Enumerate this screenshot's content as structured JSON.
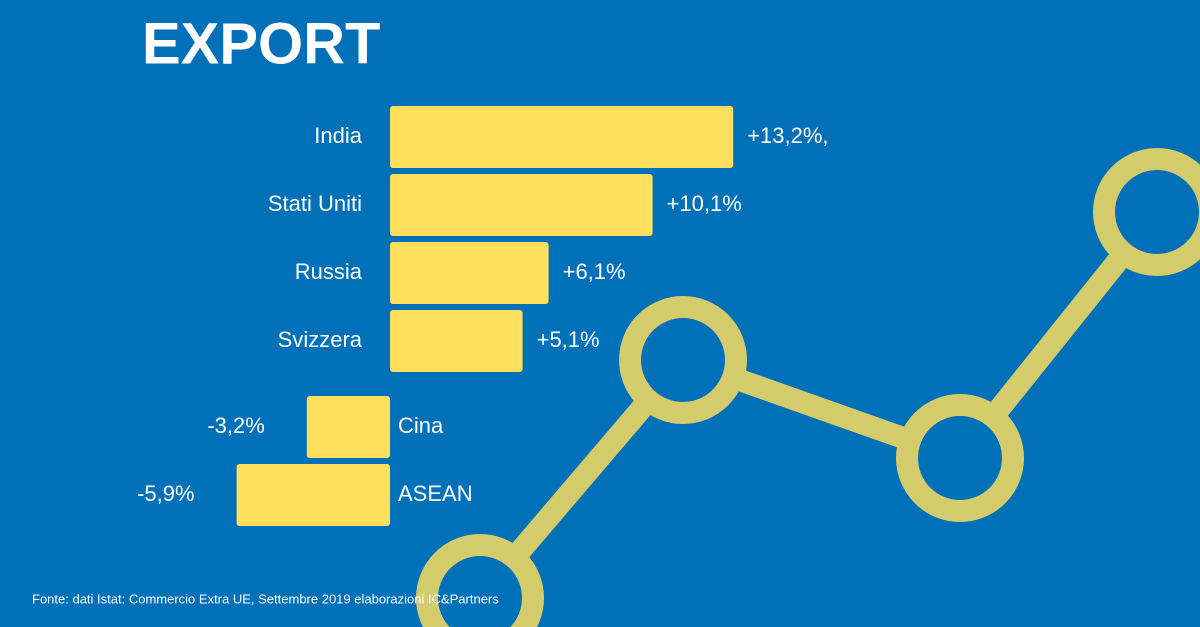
{
  "chart_data": {
    "type": "bar",
    "orientation": "horizontal",
    "title": "EXPORT",
    "categories": [
      "India",
      "Stati Uniti",
      "Russia",
      "Svizzera",
      "Cina",
      "ASEAN"
    ],
    "values": [
      13.2,
      10.1,
      6.1,
      5.1,
      -3.2,
      -5.9
    ],
    "value_labels": [
      "+13,2%,",
      "+10,1%",
      "+6,1%",
      "+5,1%",
      "-3,2%",
      "-5,9%"
    ],
    "color": "#ffdf5d",
    "source": "Fonte: dati Istat: Commercio Extra UE, Settembre 2019 elaborazioni IC&Partners"
  }
}
